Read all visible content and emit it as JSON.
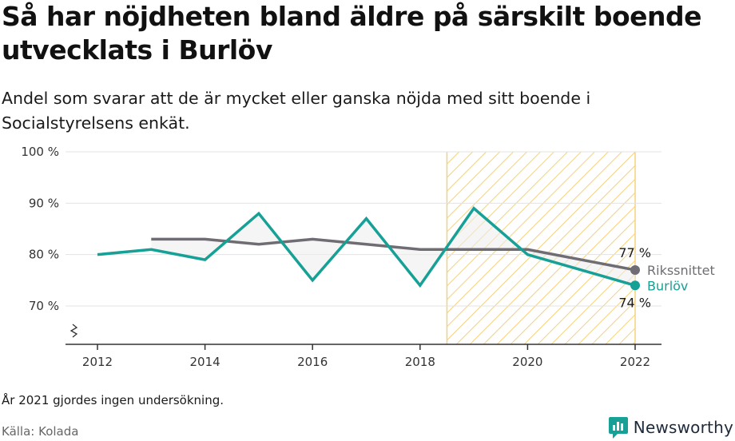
{
  "title": "Så har nöjdheten bland äldre på särskilt boende utvecklats i Burlöv",
  "subtitle": "Andel som svarar att de är mycket eller ganska nöjda med sitt boende i Socialstyrelsens enkät.",
  "note": "År 2021 gjordes ingen undersökning.",
  "source": "Källa: Kolada",
  "brand": {
    "name": "Newsworthy",
    "logo_icon": "bar-chart-speech-bubble-icon"
  },
  "colors": {
    "burlov": "#16a096",
    "riket": "#6f6d73",
    "highlight": "#f5d27a",
    "axis": "#333333",
    "grid": "#e3e3e3"
  },
  "chart_data": {
    "type": "line",
    "x_ticks": [
      "2012",
      "2014",
      "2016",
      "2018",
      "2020",
      "2022"
    ],
    "y_ticks": [
      "100 %",
      "90 %",
      "80 %",
      "70 %"
    ],
    "ylim": [
      70,
      100
    ],
    "xlim": [
      2012,
      2022
    ],
    "grid": true,
    "axis_break": true,
    "highlight_range": [
      2018.5,
      2022
    ],
    "series": [
      {
        "name": "Rikssnittet",
        "color": "#6f6d73",
        "end_label": "77 %",
        "points": [
          [
            2013,
            83
          ],
          [
            2014,
            83
          ],
          [
            2015,
            82
          ],
          [
            2016,
            83
          ],
          [
            2017,
            82
          ],
          [
            2018,
            81
          ],
          [
            2019,
            81
          ],
          [
            2020,
            81
          ],
          [
            2022,
            77
          ]
        ]
      },
      {
        "name": "Burlöv",
        "color": "#16a096",
        "end_label": "74 %",
        "points": [
          [
            2012,
            80
          ],
          [
            2013,
            81
          ],
          [
            2014,
            79
          ],
          [
            2015,
            88
          ],
          [
            2016,
            75
          ],
          [
            2017,
            87
          ],
          [
            2018,
            74
          ],
          [
            2019,
            89
          ],
          [
            2020,
            80
          ],
          [
            2022,
            74
          ]
        ]
      }
    ]
  }
}
